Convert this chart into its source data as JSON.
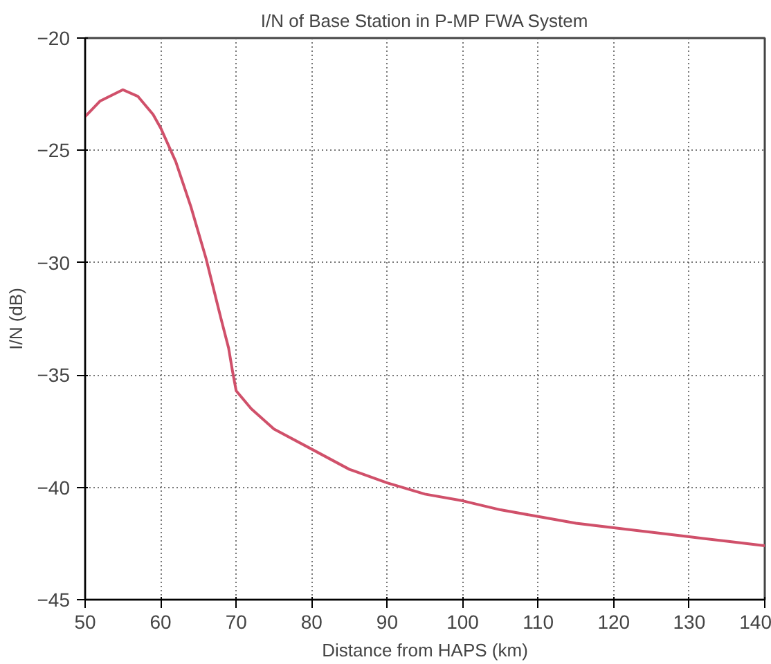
{
  "chart_data": {
    "type": "line",
    "title": "I/N of Base Station in P-MP FWA System",
    "xlabel": "Distance from HAPS (km)",
    "ylabel": "I/N (dB)",
    "x": [
      50,
      52,
      55,
      57,
      59,
      60,
      62,
      64,
      66,
      68,
      69,
      69.5,
      70,
      72,
      75,
      80,
      85,
      90,
      95,
      100,
      105,
      110,
      115,
      120,
      125,
      130,
      135,
      140
    ],
    "series": [
      {
        "color": "#d0506a",
        "values": [
          -23.5,
          -22.8,
          -22.3,
          -22.6,
          -23.4,
          -24.0,
          -25.5,
          -27.5,
          -29.8,
          -32.5,
          -33.8,
          -34.8,
          -35.7,
          -36.5,
          -37.4,
          -38.3,
          -39.2,
          -39.8,
          -40.3,
          -40.6,
          -41.0,
          -41.3,
          -41.6,
          -41.8,
          -42.0,
          -42.2,
          -42.4,
          -42.6
        ]
      }
    ],
    "xlim": [
      50,
      140
    ],
    "ylim": [
      -45,
      -20
    ],
    "xticks": [
      50,
      60,
      70,
      80,
      90,
      100,
      110,
      120,
      130,
      140
    ],
    "yticks": [
      -45,
      -40,
      -35,
      -30,
      -25,
      -20
    ],
    "grid": true,
    "marker": "none",
    "line_style": "solid"
  }
}
